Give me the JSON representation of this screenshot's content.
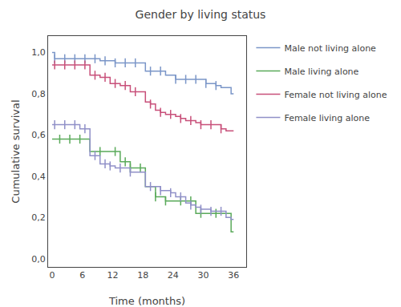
{
  "chart_data": {
    "type": "step",
    "title": "Gender by living status",
    "xlabel": "Time (months)",
    "ylabel": "Cumulative survival",
    "xlim": [
      -0.8,
      38.5
    ],
    "ylim": [
      -0.04,
      1.08
    ],
    "xticks": [
      0,
      6,
      12,
      18,
      24,
      30,
      36
    ],
    "yticks": [
      {
        "value": 0.0,
        "label": "0,0"
      },
      {
        "value": 0.2,
        "label": "0,2"
      },
      {
        "value": 0.4,
        "label": "0,4"
      },
      {
        "value": 0.6,
        "label": "0,6"
      },
      {
        "value": 0.8,
        "label": "0,8"
      },
      {
        "value": 1.0,
        "label": "1,0"
      }
    ],
    "grid": false,
    "legend": "right",
    "series": [
      {
        "name": "Male not living alone",
        "color": "#7b96c8",
        "x": [
          0,
          0.5,
          1.5,
          2.5,
          3.5,
          4.5,
          5.5,
          6.5,
          7.5,
          8.5,
          9.5,
          10.5,
          11.5,
          12.5,
          13.5,
          14.5,
          15.5,
          16.5,
          17.5,
          18.5,
          19.5,
          20.5,
          21.5,
          22.5,
          23.5,
          24.5,
          25.5,
          26.5,
          27.5,
          28.5,
          29.5,
          30.5,
          31.5,
          32.5,
          33.5,
          34.5,
          35.5,
          36
        ],
        "values": [
          1.0,
          0.97,
          0.97,
          0.97,
          0.97,
          0.97,
          0.97,
          0.97,
          0.97,
          0.97,
          0.96,
          0.96,
          0.96,
          0.95,
          0.95,
          0.95,
          0.95,
          0.95,
          0.95,
          0.91,
          0.91,
          0.91,
          0.91,
          0.89,
          0.89,
          0.87,
          0.87,
          0.87,
          0.87,
          0.87,
          0.87,
          0.85,
          0.85,
          0.84,
          0.83,
          0.83,
          0.8,
          0.8
        ],
        "censor_x": [
          0.5,
          2.5,
          4.5,
          6.5,
          8.5,
          10.5,
          12.5,
          14.5,
          16.5,
          19.5,
          21.5,
          24.5,
          26.5,
          28.5,
          30.5,
          32.5
        ],
        "censor_y": [
          0.97,
          0.97,
          0.97,
          0.97,
          0.97,
          0.96,
          0.95,
          0.95,
          0.95,
          0.91,
          0.91,
          0.87,
          0.87,
          0.87,
          0.85,
          0.84
        ]
      },
      {
        "name": "Male living alone",
        "color": "#5aaa5a",
        "x": [
          0,
          0.5,
          1.5,
          2.5,
          3.5,
          4.5,
          5.5,
          6.5,
          7.5,
          8.5,
          9.5,
          10.5,
          11.5,
          12.5,
          13.5,
          14.5,
          15.5,
          16.5,
          17.5,
          18.5,
          19.5,
          20.5,
          21.5,
          22.5,
          23.5,
          24.5,
          25.5,
          26.5,
          27.5,
          28.5,
          29.5,
          30.5,
          31.5,
          32.5,
          33.5,
          34.5,
          35.5,
          36
        ],
        "values": [
          0.58,
          0.58,
          0.58,
          0.58,
          0.58,
          0.58,
          0.58,
          0.58,
          0.52,
          0.52,
          0.52,
          0.52,
          0.52,
          0.52,
          0.47,
          0.47,
          0.44,
          0.44,
          0.44,
          0.35,
          0.35,
          0.3,
          0.3,
          0.28,
          0.28,
          0.28,
          0.28,
          0.28,
          0.28,
          0.22,
          0.22,
          0.22,
          0.22,
          0.22,
          0.22,
          0.22,
          0.13,
          0.13
        ],
        "censor_x": [
          1.5,
          3.5,
          5.5,
          9.5,
          12.5,
          14.5,
          15.5,
          17.5,
          20.5,
          22.5,
          25.5,
          27.5,
          29.5,
          32.5
        ],
        "censor_y": [
          0.58,
          0.58,
          0.58,
          0.52,
          0.52,
          0.47,
          0.44,
          0.44,
          0.3,
          0.28,
          0.28,
          0.28,
          0.22,
          0.22
        ]
      },
      {
        "name": "Female not living alone",
        "color": "#c8507a",
        "x": [
          0,
          0.5,
          1.5,
          2.5,
          3.5,
          4.5,
          5.5,
          6.5,
          7.5,
          8.5,
          9.5,
          10.5,
          11.5,
          12.5,
          13.5,
          14.5,
          15.5,
          16.5,
          17.5,
          18.5,
          19.5,
          20.5,
          21.5,
          22.5,
          23.5,
          24.5,
          25.5,
          26.5,
          27.5,
          28.5,
          29.5,
          30.5,
          31.5,
          32.5,
          33.5,
          34.5,
          35.5,
          36
        ],
        "values": [
          0.94,
          0.94,
          0.94,
          0.94,
          0.94,
          0.94,
          0.94,
          0.94,
          0.89,
          0.89,
          0.88,
          0.88,
          0.85,
          0.85,
          0.84,
          0.84,
          0.81,
          0.81,
          0.81,
          0.76,
          0.75,
          0.72,
          0.71,
          0.7,
          0.7,
          0.69,
          0.68,
          0.67,
          0.67,
          0.66,
          0.65,
          0.65,
          0.65,
          0.65,
          0.63,
          0.62,
          0.62,
          0.62
        ],
        "censor_x": [
          0.5,
          2.5,
          4.5,
          6.5,
          8.5,
          10.5,
          12.5,
          14.5,
          16.5,
          19.5,
          21.5,
          23.5,
          25.5,
          27.5,
          29.5,
          31.5,
          33.5
        ],
        "censor_y": [
          0.94,
          0.94,
          0.94,
          0.94,
          0.89,
          0.88,
          0.85,
          0.84,
          0.81,
          0.75,
          0.71,
          0.7,
          0.68,
          0.67,
          0.65,
          0.65,
          0.63
        ]
      },
      {
        "name": "Female living alone",
        "color": "#9090c8",
        "x": [
          0,
          0.5,
          1.5,
          2.5,
          3.5,
          4.5,
          5.5,
          6.5,
          7.5,
          8.5,
          9.5,
          10.5,
          11.5,
          12.5,
          13.5,
          14.5,
          15.5,
          16.5,
          17.5,
          18.5,
          19.5,
          20.5,
          21.5,
          22.5,
          23.5,
          24.5,
          25.5,
          26.5,
          27.5,
          28.5,
          29.5,
          30.5,
          31.5,
          32.5,
          33.5,
          34.5,
          35.5,
          36
        ],
        "values": [
          0.65,
          0.65,
          0.65,
          0.65,
          0.65,
          0.65,
          0.63,
          0.63,
          0.5,
          0.5,
          0.46,
          0.46,
          0.45,
          0.44,
          0.44,
          0.44,
          0.42,
          0.42,
          0.42,
          0.35,
          0.35,
          0.35,
          0.33,
          0.33,
          0.32,
          0.3,
          0.3,
          0.27,
          0.26,
          0.25,
          0.24,
          0.24,
          0.23,
          0.23,
          0.23,
          0.2,
          0.19,
          0.19
        ],
        "censor_x": [
          0.5,
          2.5,
          4.5,
          6.5,
          8.5,
          10.5,
          11.5,
          13.5,
          15.5,
          19.5,
          21.5,
          23.5,
          25.5,
          27.5,
          29.5,
          31.5,
          33.5
        ],
        "censor_y": [
          0.65,
          0.65,
          0.65,
          0.63,
          0.5,
          0.46,
          0.45,
          0.44,
          0.42,
          0.35,
          0.33,
          0.32,
          0.3,
          0.26,
          0.24,
          0.23,
          0.23
        ]
      }
    ]
  }
}
